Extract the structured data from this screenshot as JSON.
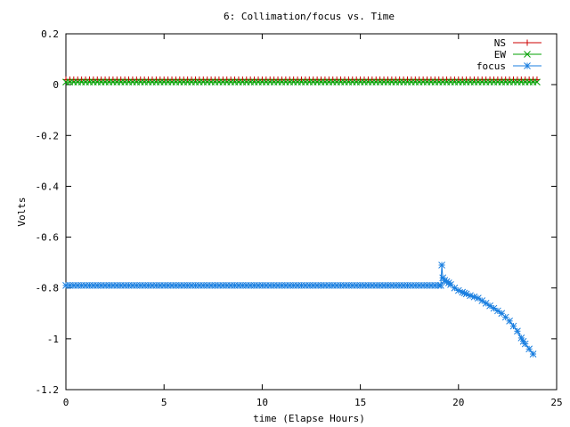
{
  "chart_data": {
    "type": "line",
    "title": "6: Collimation/focus vs. Time",
    "xlabel": "time (Elapse Hours)",
    "ylabel": "Volts",
    "xlim": [
      0,
      25
    ],
    "ylim": [
      -1.2,
      0.2
    ],
    "xticks": [
      0,
      5,
      10,
      15,
      20,
      25
    ],
    "xtick_labels": [
      "0",
      "5",
      "10",
      "15",
      "20",
      "25"
    ],
    "yticks": [
      0.2,
      0,
      -0.2,
      -0.4,
      -0.6,
      -0.8,
      -1,
      -1.2
    ],
    "ytick_labels": [
      "0.2",
      "0",
      "-0.2",
      "-0.4",
      "-0.6",
      "-0.8",
      "-1",
      "-1.2"
    ],
    "grid": false,
    "legend_position": "top-right",
    "series": [
      {
        "name": "NS",
        "color": "#cc0000",
        "marker": "plus",
        "x": [
          0,
          24
        ],
        "y": [
          0.02,
          0.02
        ],
        "x_step": 0.2
      },
      {
        "name": "EW",
        "color": "#00a000",
        "marker": "cross",
        "x": [
          0,
          24
        ],
        "y": [
          0.01,
          0.01
        ],
        "x_step": 0.2
      },
      {
        "name": "focus",
        "color": "#1a7fe0",
        "marker": "star",
        "x": [
          0,
          19.1,
          19.15,
          19.2,
          19.3,
          19.5,
          19.8,
          20.0,
          20.3,
          20.6,
          21.0,
          21.4,
          21.8,
          22.2,
          22.6,
          23.0,
          23.3,
          23.6,
          23.8
        ],
        "y": [
          -0.79,
          -0.79,
          -0.71,
          -0.76,
          -0.77,
          -0.78,
          -0.8,
          -0.81,
          -0.82,
          -0.83,
          -0.84,
          -0.86,
          -0.88,
          -0.9,
          -0.93,
          -0.97,
          -1.01,
          -1.04,
          -1.06
        ],
        "x_step": 0.2
      }
    ]
  }
}
